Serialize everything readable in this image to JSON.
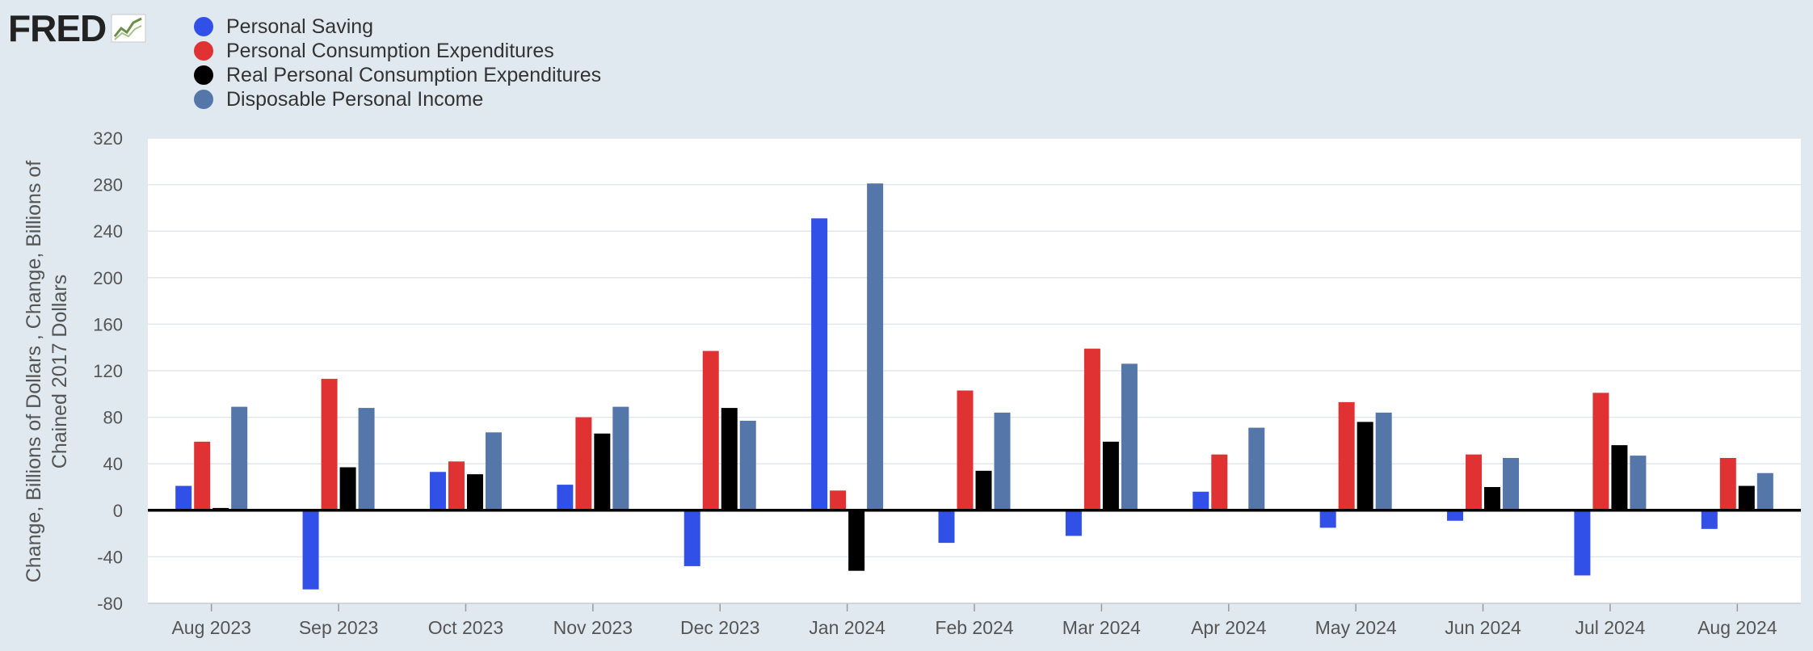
{
  "brand": {
    "logo_text": "FRED",
    "logo_icon": "fred-chart-icon"
  },
  "legend": [
    {
      "label": "Personal Saving",
      "color": "#3050e8"
    },
    {
      "label": "Personal Consumption Expenditures",
      "color": "#e03232"
    },
    {
      "label": "Real Personal Consumption Expenditures",
      "color": "#000000"
    },
    {
      "label": "Disposable Personal Income",
      "color": "#5576a8"
    }
  ],
  "chart_data": {
    "type": "bar",
    "title": "",
    "xlabel": "",
    "ylabel": "Change, Billions of Dollars , Change, Billions of Chained 2017 Dollars",
    "ylim": [
      -80,
      320
    ],
    "yticks": [
      320,
      280,
      240,
      200,
      160,
      120,
      80,
      40,
      0,
      -40,
      -80
    ],
    "grid": true,
    "legend_position": "top-left",
    "categories": [
      "Aug 2023",
      "Sep 2023",
      "Oct 2023",
      "Nov 2023",
      "Dec 2023",
      "Jan 2024",
      "Feb 2024",
      "Mar 2024",
      "Apr 2024",
      "May 2024",
      "Jun 2024",
      "Jul 2024",
      "Aug 2024"
    ],
    "series": [
      {
        "name": "Personal Saving",
        "color": "#3050e8",
        "values": [
          21,
          -68,
          33,
          22,
          -48,
          251,
          -28,
          -22,
          16,
          -15,
          -9,
          -56,
          -16
        ]
      },
      {
        "name": "Personal Consumption Expenditures",
        "color": "#e03232",
        "values": [
          59,
          113,
          42,
          80,
          137,
          17,
          103,
          139,
          48,
          93,
          48,
          101,
          45
        ]
      },
      {
        "name": "Real Personal Consumption Expenditures",
        "color": "#000000",
        "values": [
          2,
          37,
          31,
          66,
          88,
          -52,
          34,
          59,
          0,
          76,
          20,
          56,
          21
        ]
      },
      {
        "name": "Disposable Personal Income",
        "color": "#5576a8",
        "values": [
          89,
          88,
          67,
          89,
          77,
          281,
          84,
          126,
          71,
          84,
          45,
          47,
          32
        ]
      }
    ]
  }
}
